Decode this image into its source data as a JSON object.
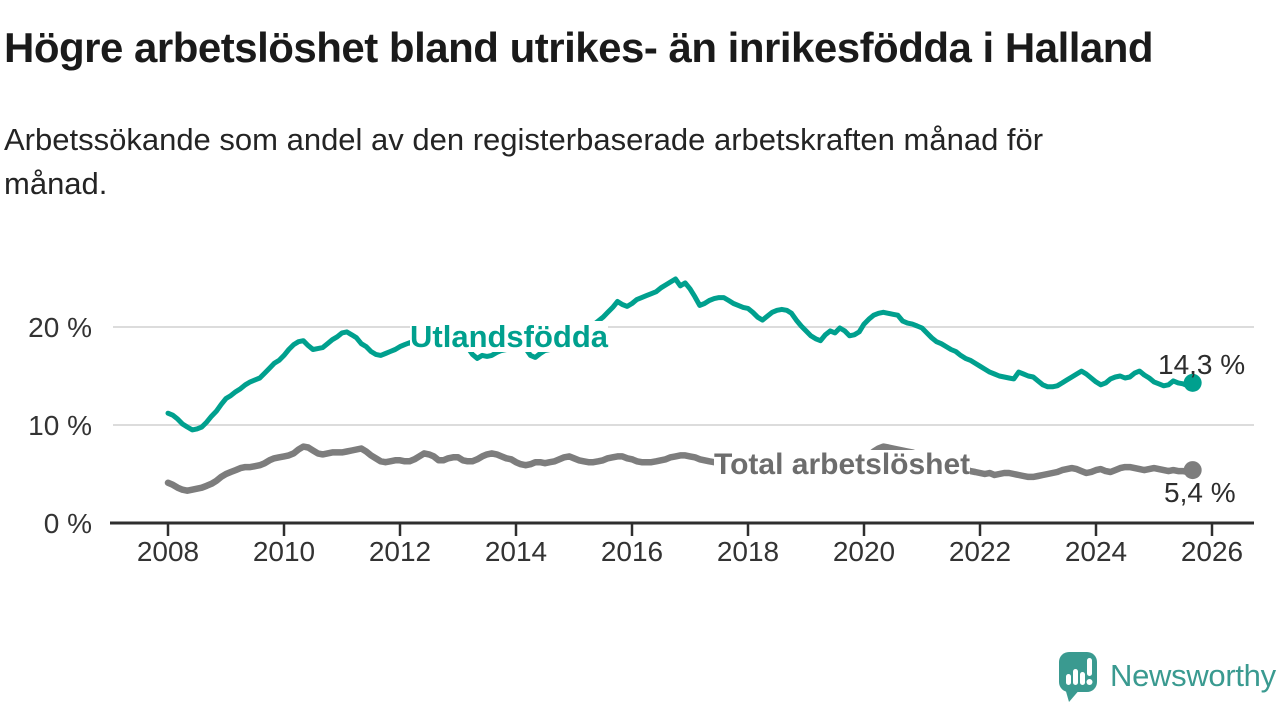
{
  "header": {
    "title": "Högre arbetslöshet bland utrikes- än inrikesfödda i Halland",
    "subtitle": "Arbetssökande som andel av den registerbaserade arbetskraften månad för månad."
  },
  "chart_data": {
    "type": "line",
    "title": "Högre arbetslöshet bland utrikes- än inrikesfödda i Halland",
    "unit": "%",
    "grid": "horizontal",
    "x_range": [
      2007.0,
      2026.72
    ],
    "y_range": [
      0,
      27.3
    ],
    "x_ticks": [
      2008,
      2010,
      2012,
      2014,
      2016,
      2018,
      2020,
      2022,
      2024,
      2026
    ],
    "x_tick_labels": [
      "2008",
      "2010",
      "2012",
      "2014",
      "2016",
      "2018",
      "2020",
      "2022",
      "2024",
      "2026"
    ],
    "y_ticks": [
      0,
      10,
      20
    ],
    "y_tick_labels": [
      "0 %",
      "10 %",
      "20 %"
    ],
    "colors": {
      "grid": "#dcdcdc",
      "axis": "#2e2e2e",
      "tick_text": "#333333"
    },
    "series": [
      {
        "name": "Utlandsfödda",
        "color": "#00a08e",
        "end_label": "14,3 %",
        "end_value": 14.3,
        "start_year": 2008,
        "interval_months": 1,
        "values": [
          11.2,
          11.0,
          10.6,
          10.1,
          9.8,
          9.5,
          9.6,
          9.8,
          10.3,
          10.9,
          11.4,
          12.1,
          12.7,
          13.0,
          13.4,
          13.7,
          14.1,
          14.4,
          14.6,
          14.8,
          15.3,
          15.8,
          16.3,
          16.6,
          17.1,
          17.7,
          18.2,
          18.5,
          18.6,
          18.1,
          17.7,
          17.8,
          17.9,
          18.3,
          18.7,
          19.0,
          19.4,
          19.5,
          19.2,
          18.9,
          18.3,
          18.0,
          17.5,
          17.2,
          17.1,
          17.3,
          17.5,
          17.7,
          18.0,
          18.2,
          18.4,
          18.1,
          18.0,
          18.2,
          18.5,
          18.7,
          18.5,
          18.2,
          18.4,
          18.7,
          18.9,
          18.6,
          17.9,
          17.2,
          16.8,
          17.1,
          17.0,
          17.1,
          17.4,
          17.6,
          17.7,
          17.8,
          17.9,
          18.1,
          17.8,
          17.1,
          16.9,
          17.3,
          17.6,
          17.7,
          17.8,
          17.8,
          17.9,
          18.1,
          18.4,
          18.8,
          19.3,
          19.8,
          20.2,
          20.6,
          21.0,
          21.5,
          22.0,
          22.6,
          22.3,
          22.1,
          22.4,
          22.8,
          23.0,
          23.2,
          23.4,
          23.6,
          24.0,
          24.3,
          24.6,
          24.9,
          24.2,
          24.5,
          23.9,
          23.1,
          22.2,
          22.4,
          22.7,
          22.9,
          23.0,
          23.0,
          22.7,
          22.4,
          22.2,
          22.0,
          21.9,
          21.5,
          21.0,
          20.7,
          21.1,
          21.5,
          21.7,
          21.8,
          21.7,
          21.4,
          20.7,
          20.1,
          19.6,
          19.1,
          18.8,
          18.6,
          19.2,
          19.6,
          19.4,
          19.9,
          19.6,
          19.1,
          19.2,
          19.5,
          20.3,
          20.8,
          21.2,
          21.4,
          21.5,
          21.4,
          21.3,
          21.2,
          20.6,
          20.4,
          20.3,
          20.1,
          19.9,
          19.4,
          18.9,
          18.5,
          18.3,
          18.0,
          17.7,
          17.5,
          17.1,
          16.8,
          16.6,
          16.3,
          16.0,
          15.7,
          15.4,
          15.2,
          15.0,
          14.9,
          14.8,
          14.7,
          15.4,
          15.2,
          15.0,
          14.9,
          14.5,
          14.1,
          13.9,
          13.9,
          14.0,
          14.3,
          14.6,
          14.9,
          15.2,
          15.5,
          15.2,
          14.8,
          14.4,
          14.1,
          14.3,
          14.7,
          14.9,
          15.0,
          14.8,
          14.9,
          15.3,
          15.5,
          15.1,
          14.8,
          14.4,
          14.2,
          14.0,
          14.1,
          14.5,
          14.3,
          14.2,
          14.0,
          14.3
        ]
      },
      {
        "name": "Total arbetslöshet",
        "color": "#7d7d7d",
        "end_label": "5,4 %",
        "end_value": 5.4,
        "start_year": 2008,
        "interval_months": 1,
        "values": [
          4.1,
          3.9,
          3.6,
          3.4,
          3.3,
          3.4,
          3.5,
          3.6,
          3.8,
          4.0,
          4.3,
          4.7,
          5.0,
          5.2,
          5.4,
          5.6,
          5.7,
          5.7,
          5.8,
          5.9,
          6.1,
          6.4,
          6.6,
          6.7,
          6.8,
          6.9,
          7.1,
          7.5,
          7.8,
          7.7,
          7.4,
          7.1,
          7.0,
          7.1,
          7.2,
          7.2,
          7.2,
          7.3,
          7.4,
          7.5,
          7.6,
          7.3,
          6.9,
          6.6,
          6.3,
          6.2,
          6.3,
          6.4,
          6.4,
          6.3,
          6.3,
          6.5,
          6.8,
          7.1,
          7.0,
          6.8,
          6.4,
          6.4,
          6.6,
          6.7,
          6.7,
          6.4,
          6.3,
          6.3,
          6.5,
          6.8,
          7.0,
          7.1,
          7.0,
          6.8,
          6.6,
          6.5,
          6.2,
          6.0,
          5.9,
          6.0,
          6.2,
          6.2,
          6.1,
          6.2,
          6.3,
          6.5,
          6.7,
          6.8,
          6.6,
          6.4,
          6.3,
          6.2,
          6.2,
          6.3,
          6.4,
          6.6,
          6.7,
          6.8,
          6.8,
          6.6,
          6.5,
          6.3,
          6.2,
          6.2,
          6.2,
          6.3,
          6.4,
          6.5,
          6.7,
          6.8,
          6.9,
          6.9,
          6.8,
          6.7,
          6.5,
          6.4,
          6.3,
          6.2,
          6.1,
          6.1,
          6.2,
          6.3,
          6.3,
          6.2,
          6.1,
          6.0,
          6.0,
          6.1,
          6.2,
          6.2,
          6.1,
          6.1,
          6.0,
          6.0,
          6.0,
          6.0,
          6.0,
          6.0,
          6.0,
          6.1,
          6.1,
          6.2,
          6.2,
          6.2,
          6.2,
          6.3,
          6.3,
          6.4,
          6.6,
          6.9,
          7.3,
          7.6,
          7.8,
          7.7,
          7.6,
          7.5,
          7.4,
          7.3,
          7.2,
          7.0,
          6.9,
          6.7,
          6.5,
          6.3,
          6.2,
          6.0,
          5.9,
          5.7,
          5.6,
          5.5,
          5.3,
          5.2,
          5.1,
          5.0,
          5.1,
          4.9,
          5.0,
          5.1,
          5.1,
          5.0,
          4.9,
          4.8,
          4.7,
          4.7,
          4.8,
          4.9,
          5.0,
          5.1,
          5.2,
          5.4,
          5.5,
          5.6,
          5.5,
          5.3,
          5.1,
          5.2,
          5.4,
          5.5,
          5.3,
          5.2,
          5.4,
          5.6,
          5.7,
          5.7,
          5.6,
          5.5,
          5.4,
          5.5,
          5.6,
          5.5,
          5.4,
          5.3,
          5.4,
          5.3,
          5.3,
          5.2,
          5.4
        ]
      }
    ]
  },
  "footer": {
    "brand": "Newsworthy"
  }
}
